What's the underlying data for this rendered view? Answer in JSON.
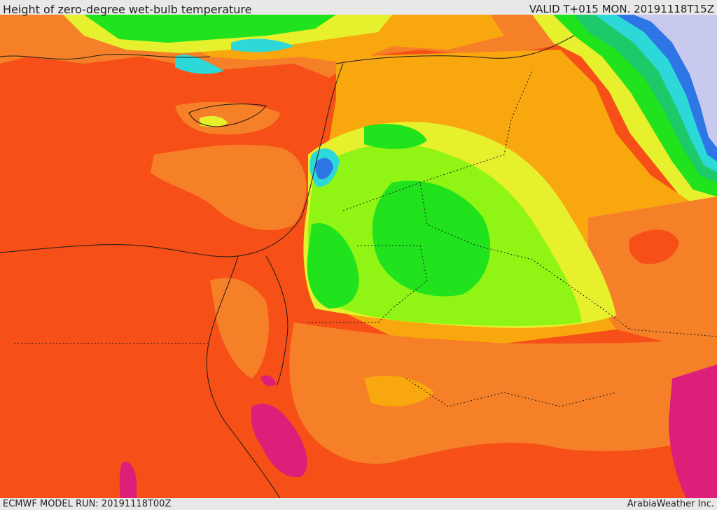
{
  "header": {
    "title": "Height of zero-degree wet-bulb temperature",
    "valid": "VALID T+015 MON. 20191118T15Z"
  },
  "footer": {
    "model_run": "ECMWF MODEL RUN: 20191118T00Z",
    "credit": "ArabiaWeather Inc."
  },
  "map": {
    "palette": {
      "red_orange": "#f64f17",
      "orange": "#f68028",
      "amber": "#f9a70f",
      "yellow": "#e6f02c",
      "lime": "#90f514",
      "green": "#20e21d",
      "teal_green": "#1ec96a",
      "cyan": "#2cd9d8",
      "blue": "#2e75e6",
      "lavender": "#c8c9ee",
      "magenta": "#dd1f7a",
      "coast": "#1a1a1a"
    }
  }
}
